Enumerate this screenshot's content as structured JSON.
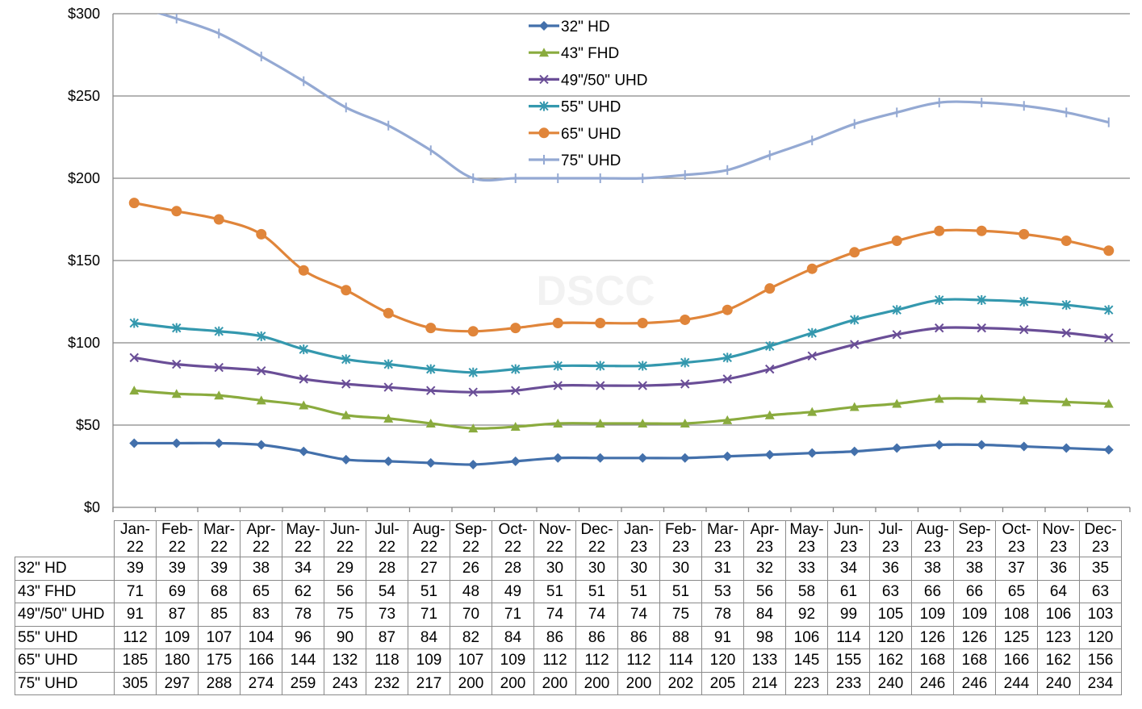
{
  "chart_data": {
    "type": "line",
    "title": "",
    "xlabel": "",
    "ylabel": "",
    "ylim": [
      0,
      300
    ],
    "yticks": [
      "$0",
      "$50",
      "$100",
      "$150",
      "$200",
      "$250",
      "$300"
    ],
    "ytick_values": [
      0,
      50,
      100,
      150,
      200,
      250,
      300
    ],
    "grid": true,
    "legend_position": "top-center",
    "watermark": "DSCC",
    "categories": [
      [
        "Jan-",
        "22"
      ],
      [
        "Feb-",
        "22"
      ],
      [
        "Mar-",
        "22"
      ],
      [
        "Apr-",
        "22"
      ],
      [
        "May-",
        "22"
      ],
      [
        "Jun-",
        "22"
      ],
      [
        "Jul-",
        "22"
      ],
      [
        "Aug-",
        "22"
      ],
      [
        "Sep-",
        "22"
      ],
      [
        "Oct-",
        "22"
      ],
      [
        "Nov-",
        "22"
      ],
      [
        "Dec-",
        "22"
      ],
      [
        "Jan-",
        "23"
      ],
      [
        "Feb-",
        "23"
      ],
      [
        "Mar-",
        "23"
      ],
      [
        "Apr-",
        "23"
      ],
      [
        "May-",
        "23"
      ],
      [
        "Jun-",
        "23"
      ],
      [
        "Jul-",
        "23"
      ],
      [
        "Aug-",
        "23"
      ],
      [
        "Sep-",
        "23"
      ],
      [
        "Oct-",
        "23"
      ],
      [
        "Nov-",
        "23"
      ],
      [
        "Dec-",
        "23"
      ]
    ],
    "series": [
      {
        "name": "32\" HD",
        "color": "#4370ab",
        "marker": "diamond",
        "values": [
          39,
          39,
          39,
          38,
          34,
          29,
          28,
          27,
          26,
          28,
          30,
          30,
          30,
          30,
          31,
          32,
          33,
          34,
          36,
          38,
          38,
          37,
          36,
          35
        ]
      },
      {
        "name": "43\" FHD",
        "color": "#8aab3e",
        "marker": "triangle",
        "values": [
          71,
          69,
          68,
          65,
          62,
          56,
          54,
          51,
          48,
          49,
          51,
          51,
          51,
          51,
          53,
          56,
          58,
          61,
          63,
          66,
          66,
          65,
          64,
          63
        ]
      },
      {
        "name": "49\"/50\" UHD",
        "color": "#6a4e97",
        "marker": "x",
        "values": [
          91,
          87,
          85,
          83,
          78,
          75,
          73,
          71,
          70,
          71,
          74,
          74,
          74,
          75,
          78,
          84,
          92,
          99,
          105,
          109,
          109,
          108,
          106,
          103
        ]
      },
      {
        "name": "55\" UHD",
        "color": "#3498ae",
        "marker": "asterisk",
        "values": [
          112,
          109,
          107,
          104,
          96,
          90,
          87,
          84,
          82,
          84,
          86,
          86,
          86,
          88,
          91,
          98,
          106,
          114,
          120,
          126,
          126,
          125,
          123,
          120
        ]
      },
      {
        "name": "65\" UHD",
        "color": "#e0853a",
        "marker": "circle",
        "values": [
          185,
          180,
          175,
          166,
          144,
          132,
          118,
          109,
          107,
          109,
          112,
          112,
          112,
          114,
          120,
          133,
          145,
          155,
          162,
          168,
          168,
          166,
          162,
          156
        ]
      },
      {
        "name": "75\" UHD",
        "color": "#94a9d3",
        "marker": "plus",
        "values": [
          305,
          297,
          288,
          274,
          259,
          243,
          232,
          217,
          200,
          200,
          200,
          200,
          200,
          202,
          205,
          214,
          223,
          233,
          240,
          246,
          246,
          244,
          240,
          234
        ]
      }
    ]
  }
}
